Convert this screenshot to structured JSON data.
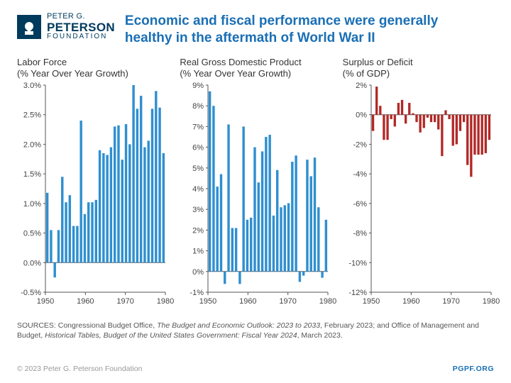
{
  "logo": {
    "line1": "PETER G.",
    "line2": "PETERSON",
    "line3": "FOUNDATION"
  },
  "title": "Economic and fiscal performance were generally healthy in the aftermath of World War II",
  "panel_title_fontsize": 13,
  "axis_label_fontsize": 11,
  "colors": {
    "brand_dark": "#003a5d",
    "title_blue": "#1a6fb5",
    "bar_blue": "#2f8fd0",
    "bar_red": "#b22826",
    "axis": "#555555",
    "tick_text": "#444444",
    "background": "#ffffff",
    "footer_grey": "#999999"
  },
  "x_axis": {
    "start_year": 1950,
    "end_year": 1980,
    "tick_labels": [
      "1950",
      "1960",
      "1970",
      "1980"
    ],
    "tick_years": [
      1950,
      1960,
      1970,
      1980
    ]
  },
  "charts": [
    {
      "id": "labor",
      "title": "Labor Force\n(% Year Over Year Growth)",
      "type": "bar",
      "color_key": "bar_blue",
      "ylim": [
        -0.5,
        3.0
      ],
      "ytick_step": 0.5,
      "y_suffix": "%",
      "y_decimals": 1,
      "values": [
        1.18,
        0.55,
        -0.25,
        0.55,
        1.45,
        1.02,
        1.14,
        0.62,
        0.62,
        2.4,
        0.82,
        1.02,
        1.02,
        1.06,
        1.9,
        1.85,
        1.82,
        1.95,
        2.3,
        2.32,
        1.74,
        2.34,
        2.0,
        3.0,
        2.6,
        2.82,
        1.95,
        2.06,
        2.6,
        2.9,
        2.62,
        1.85
      ]
    },
    {
      "id": "gdp",
      "title": "Real Gross Domestic Product\n(% Year Over Year Growth)",
      "type": "bar",
      "color_key": "bar_blue",
      "ylim": [
        -1,
        9
      ],
      "ytick_step": 1,
      "y_suffix": "%",
      "y_decimals": 0,
      "values": [
        8.7,
        8.0,
        4.1,
        4.7,
        -0.6,
        7.1,
        2.1,
        2.1,
        -0.6,
        7.0,
        2.5,
        2.6,
        6.0,
        4.3,
        5.8,
        6.5,
        6.6,
        2.7,
        4.9,
        3.1,
        3.2,
        3.3,
        5.3,
        5.6,
        -0.5,
        -0.2,
        5.4,
        4.6,
        5.5,
        3.1,
        -0.3,
        2.5
      ]
    },
    {
      "id": "deficit",
      "title": "Surplus or Deficit\n(% of GDP)",
      "type": "bar",
      "color_key": "bar_red",
      "ylim": [
        -12,
        2
      ],
      "ytick_step": 2,
      "y_suffix": "%",
      "y_decimals": 0,
      "values": [
        -1.1,
        1.9,
        0.6,
        -1.7,
        -1.7,
        -0.3,
        -0.8,
        0.8,
        1.0,
        -0.6,
        0.8,
        0.1,
        -0.5,
        -1.2,
        -0.9,
        -0.2,
        -0.5,
        -0.5,
        -1.0,
        -2.8,
        0.3,
        -0.3,
        -2.1,
        -2.0,
        -1.1,
        -0.5,
        -3.4,
        -4.2,
        -2.7,
        -2.7,
        -2.7,
        -2.6,
        -1.7
      ]
    }
  ],
  "sources": {
    "prefix": "SOURCES: Congressional Budget Office, ",
    "cite1": "The Budget and Economic Outlook: 2023 to 2033",
    "mid1": ", February 2023; and Office of Management and Budget, ",
    "cite2": "Historical Tables, Budget of the United States Government: Fiscal Year 2024",
    "mid2": ", March 2023."
  },
  "footer": {
    "copyright": "© 2023 Peter G. Peterson Foundation",
    "url": "PGPF.ORG"
  }
}
